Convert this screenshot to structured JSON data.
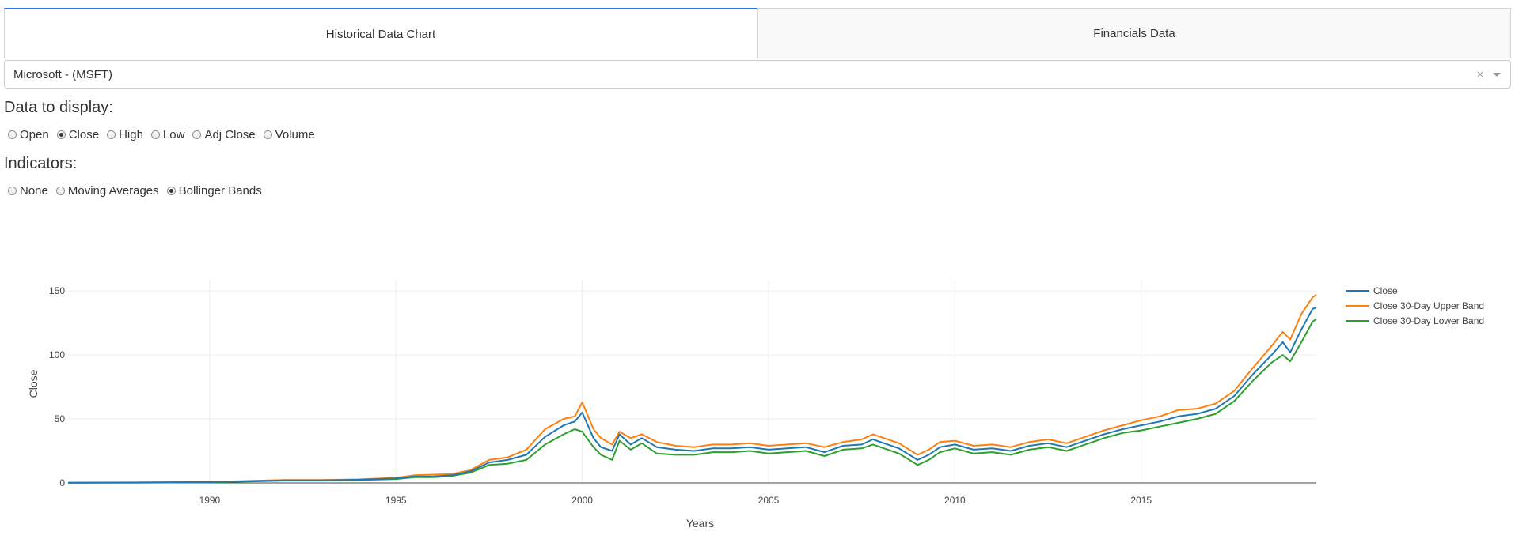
{
  "tabs": [
    {
      "label": "Historical Data Chart",
      "active": true
    },
    {
      "label": "Financials Data",
      "active": false
    }
  ],
  "stock_select": {
    "value": "Microsoft - (MSFT)"
  },
  "data_section": {
    "heading": "Data to display:",
    "options": [
      "Open",
      "Close",
      "High",
      "Low",
      "Adj Close",
      "Volume"
    ],
    "selected": "Close"
  },
  "indicator_section": {
    "heading": "Indicators:",
    "options": [
      "None",
      "Moving Averages",
      "Bollinger Bands"
    ],
    "selected": "Bollinger Bands"
  },
  "chart_data": {
    "type": "line",
    "xlabel": "Years",
    "ylabel": "Close",
    "xlim": [
      1986.2,
      2019.7
    ],
    "ylim": [
      0,
      155
    ],
    "xticks": [
      1990,
      1995,
      2000,
      2005,
      2010,
      2015
    ],
    "yticks": [
      0,
      50,
      100,
      150
    ],
    "grid": true,
    "legend_position": "top-right",
    "series": [
      {
        "name": "Close",
        "color": "#1f77b4",
        "x": [
          1986.2,
          1988,
          1990,
          1992,
          1993,
          1994,
          1995,
          1995.5,
          1996,
          1996.5,
          1997,
          1997.5,
          1998,
          1998.5,
          1999,
          1999.5,
          1999.8,
          2000,
          2000.3,
          2000.5,
          2000.8,
          2001,
          2001.3,
          2001.6,
          2002,
          2002.5,
          2003,
          2003.5,
          2004,
          2004.5,
          2005,
          2005.5,
          2006,
          2006.5,
          2007,
          2007.5,
          2007.8,
          2008,
          2008.5,
          2009,
          2009.3,
          2009.6,
          2010,
          2010.5,
          2011,
          2011.5,
          2012,
          2012.5,
          2013,
          2013.5,
          2014,
          2014.5,
          2015,
          2015.5,
          2016,
          2016.5,
          2017,
          2017.5,
          2018,
          2018.5,
          2018.8,
          2019,
          2019.3,
          2019.6,
          2019.7
        ],
        "y": [
          0.1,
          0.3,
          0.6,
          2,
          2,
          2.5,
          3.5,
          5,
          5,
          6,
          9,
          16,
          18,
          22,
          36,
          45,
          48,
          55,
          35,
          28,
          25,
          38,
          30,
          35,
          28,
          26,
          25,
          27,
          27,
          28,
          26,
          27,
          28,
          24,
          29,
          30,
          34,
          32,
          27,
          18,
          22,
          28,
          30,
          26,
          27,
          25,
          29,
          31,
          28,
          33,
          38,
          42,
          45,
          48,
          52,
          54,
          58,
          68,
          85,
          100,
          110,
          102,
          120,
          136,
          137
        ]
      },
      {
        "name": "Close 30-Day Upper Band",
        "color": "#ff7f0e",
        "x": [
          1986.2,
          1988,
          1990,
          1992,
          1993,
          1994,
          1995,
          1995.5,
          1996,
          1996.5,
          1997,
          1997.5,
          1998,
          1998.5,
          1999,
          1999.5,
          1999.8,
          2000,
          2000.3,
          2000.5,
          2000.8,
          2001,
          2001.3,
          2001.6,
          2002,
          2002.5,
          2003,
          2003.5,
          2004,
          2004.5,
          2005,
          2005.5,
          2006,
          2006.5,
          2007,
          2007.5,
          2007.8,
          2008,
          2008.5,
          2009,
          2009.3,
          2009.6,
          2010,
          2010.5,
          2011,
          2011.5,
          2012,
          2012.5,
          2013,
          2013.5,
          2014,
          2014.5,
          2015,
          2015.5,
          2016,
          2016.5,
          2017,
          2017.5,
          2018,
          2018.5,
          2018.8,
          2019,
          2019.3,
          2019.6,
          2019.7
        ],
        "y": [
          0.2,
          0.4,
          0.8,
          2.3,
          2.3,
          2.8,
          4,
          6,
          6.5,
          7,
          10,
          18,
          20,
          26,
          42,
          50,
          52,
          63,
          42,
          35,
          30,
          40,
          35,
          38,
          32,
          29,
          28,
          30,
          30,
          31,
          29,
          30,
          31,
          28,
          32,
          34,
          38,
          36,
          31,
          22,
          26,
          32,
          33,
          29,
          30,
          28,
          32,
          34,
          31,
          36,
          41,
          45,
          49,
          52,
          57,
          58,
          62,
          72,
          90,
          107,
          118,
          112,
          132,
          145,
          147
        ]
      },
      {
        "name": "Close 30-Day Lower Band",
        "color": "#2ca02c",
        "x": [
          1986.2,
          1988,
          1990,
          1992,
          1993,
          1994,
          1995,
          1995.5,
          1996,
          1996.5,
          1997,
          1997.5,
          1998,
          1998.5,
          1999,
          1999.5,
          1999.8,
          2000,
          2000.3,
          2000.5,
          2000.8,
          2001,
          2001.3,
          2001.6,
          2002,
          2002.5,
          2003,
          2003.5,
          2004,
          2004.5,
          2005,
          2005.5,
          2006,
          2006.5,
          2007,
          2007.5,
          2007.8,
          2008,
          2008.5,
          2009,
          2009.3,
          2009.6,
          2010,
          2010.5,
          2011,
          2011.5,
          2012,
          2012.5,
          2013,
          2013.5,
          2014,
          2014.5,
          2015,
          2015.5,
          2016,
          2016.5,
          2017,
          2017.5,
          2018,
          2018.5,
          2018.8,
          2019,
          2019.3,
          2019.6,
          2019.7
        ],
        "y": [
          0.05,
          0.2,
          0.5,
          1.8,
          1.8,
          2.2,
          3,
          4.5,
          4.5,
          5.5,
          8,
          14,
          15,
          18,
          30,
          38,
          42,
          40,
          28,
          22,
          18,
          33,
          26,
          31,
          23,
          22,
          22,
          24,
          24,
          25,
          23,
          24,
          25,
          21,
          26,
          27,
          30,
          28,
          23,
          14,
          18,
          24,
          27,
          23,
          24,
          22,
          26,
          28,
          25,
          30,
          35,
          39,
          41,
          44,
          47,
          50,
          54,
          64,
          80,
          94,
          100,
          95,
          110,
          126,
          128
        ]
      }
    ]
  }
}
